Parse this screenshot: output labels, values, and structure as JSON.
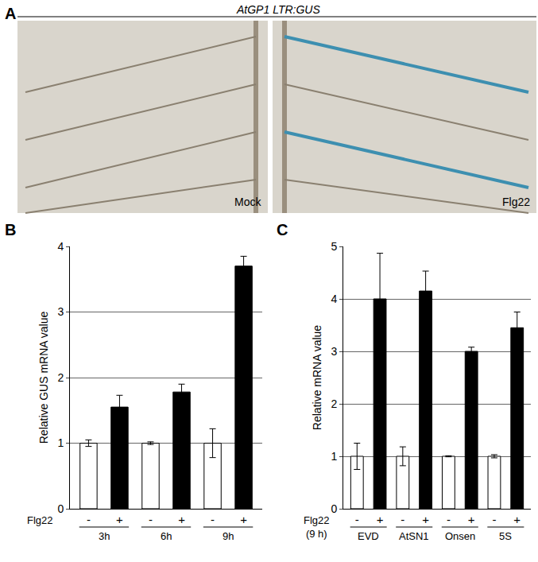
{
  "panel_a": {
    "label": "A",
    "title": "AtGP1 LTR:GUS",
    "images": [
      "Mock",
      "Flg22"
    ]
  },
  "chart_data": [
    {
      "type": "bar",
      "title": "B",
      "categories": [
        "-",
        "+",
        "-",
        "+",
        "-",
        "+"
      ],
      "values": [
        1.0,
        1.55,
        1.0,
        1.78,
        1.0,
        3.7
      ],
      "errors": [
        0.05,
        0.18,
        0.02,
        0.12,
        0.22,
        0.15
      ],
      "colors": [
        "#ffffff",
        "#000000",
        "#ffffff",
        "#000000",
        "#ffffff",
        "#000000"
      ],
      "group_labels": [
        "3h",
        "6h",
        "9h"
      ],
      "x_label": "Flg22",
      "y_label": "Relative GUS mRNA value",
      "ylim": [
        0,
        4
      ],
      "yticks": [
        0,
        1,
        2,
        3,
        4
      ],
      "grid": true
    },
    {
      "type": "bar",
      "title": "C",
      "categories": [
        "-",
        "+",
        "-",
        "+",
        "-",
        "+",
        "-",
        "+"
      ],
      "values": [
        1.0,
        4.0,
        1.0,
        4.15,
        1.0,
        3.0,
        1.0,
        3.45
      ],
      "errors": [
        0.25,
        0.87,
        0.18,
        0.38,
        0.01,
        0.08,
        0.03,
        0.3
      ],
      "colors": [
        "#ffffff",
        "#000000",
        "#ffffff",
        "#000000",
        "#ffffff",
        "#000000",
        "#ffffff",
        "#000000"
      ],
      "group_labels": [
        "EVD",
        "AtSN1",
        "Onsen",
        "5S"
      ],
      "x_label": "Flg22\n(9 h)",
      "y_label": "Relative mRNA value",
      "ylim": [
        0,
        5
      ],
      "yticks": [
        0,
        1,
        2,
        3,
        4,
        5
      ],
      "grid": true
    }
  ]
}
